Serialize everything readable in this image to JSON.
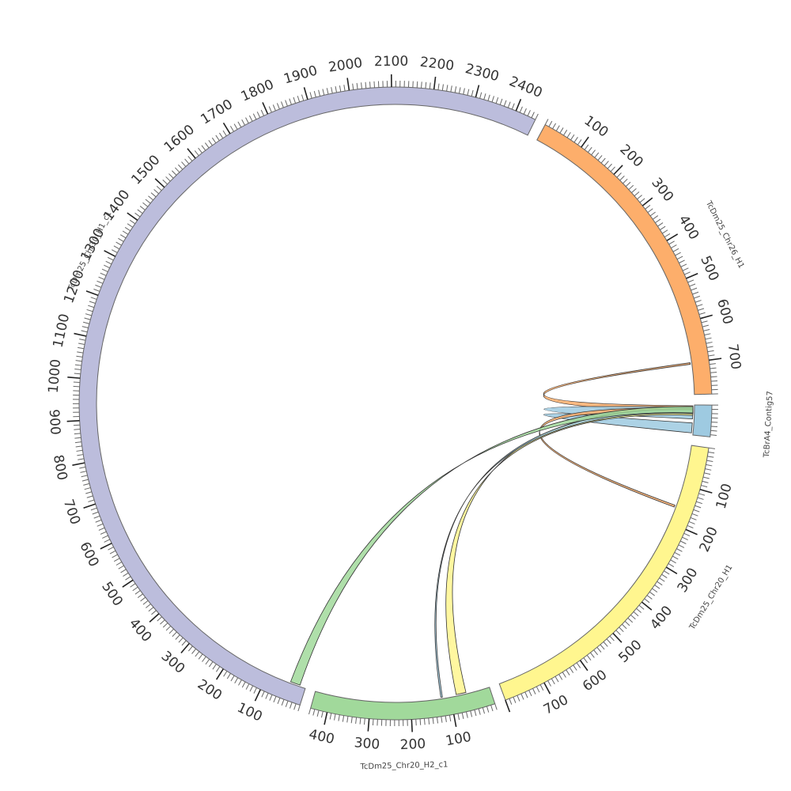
{
  "diagram": {
    "type": "circos",
    "tick_step_minor": 10,
    "tick_step_major": 100,
    "segments": [
      {
        "id": "contig57",
        "name": "TcBrA4_Contig57",
        "length": 75,
        "color": "#9ecae1",
        "tick_labels": []
      },
      {
        "id": "chr20h1",
        "name": "TcDm25_Chr20_H1",
        "length": 800,
        "color": "#fff68f",
        "tick_labels": [
          "100",
          "200",
          "300",
          "400",
          "500",
          "600",
          "700"
        ]
      },
      {
        "id": "chr20h2",
        "name": "TcDm25_Chr20_H2_c1",
        "length": 440,
        "color": "#a1d99b",
        "tick_labels": [
          "100",
          "200",
          "300",
          "400"
        ]
      },
      {
        "id": "chr30h1",
        "name": "TcDm25_Chr30_H1_c1",
        "length": 2450,
        "color": "#bcbddc",
        "tick_labels": [
          "100",
          "200",
          "300",
          "400",
          "500",
          "600",
          "700",
          "800",
          "900",
          "1000",
          "1100",
          "1200",
          "1300",
          "1400",
          "1500",
          "1600",
          "1700",
          "1800",
          "1900",
          "2000",
          "2100",
          "2200",
          "2300",
          "2400"
        ]
      },
      {
        "id": "chr26h1",
        "name": "TcDm25_Chr26_H1",
        "length": 780,
        "color": "#fdae6b",
        "tick_labels": [
          "100",
          "200",
          "300",
          "400",
          "500",
          "600",
          "700"
        ]
      }
    ],
    "links": [
      {
        "source": "contig57",
        "s0": 2,
        "s1": 18,
        "target": "chr26h1",
        "t0": 700,
        "t1": 704,
        "color": "#fdae6b"
      },
      {
        "source": "contig57",
        "s0": 5,
        "s1": 35,
        "target": "contig57",
        "t0": 45,
        "t1": 70,
        "color": "#9ecae1"
      },
      {
        "source": "contig57",
        "s0": 8,
        "s1": 20,
        "target": "chr20h1",
        "t0": 155,
        "t1": 160,
        "color": "#fdae6b"
      },
      {
        "source": "contig57",
        "s0": 10,
        "s1": 26,
        "target": "chr20h2",
        "t0": 60,
        "t1": 85,
        "color": "#fff68f"
      },
      {
        "source": "contig57",
        "s0": 12,
        "s1": 22,
        "target": "chr20h2",
        "t0": 120,
        "t1": 124,
        "color": "#9ecae1"
      },
      {
        "source": "contig57",
        "s0": 4,
        "s1": 20,
        "target": "chr30h1",
        "t0": 15,
        "t1": 40,
        "color": "#a1d99b"
      }
    ]
  }
}
